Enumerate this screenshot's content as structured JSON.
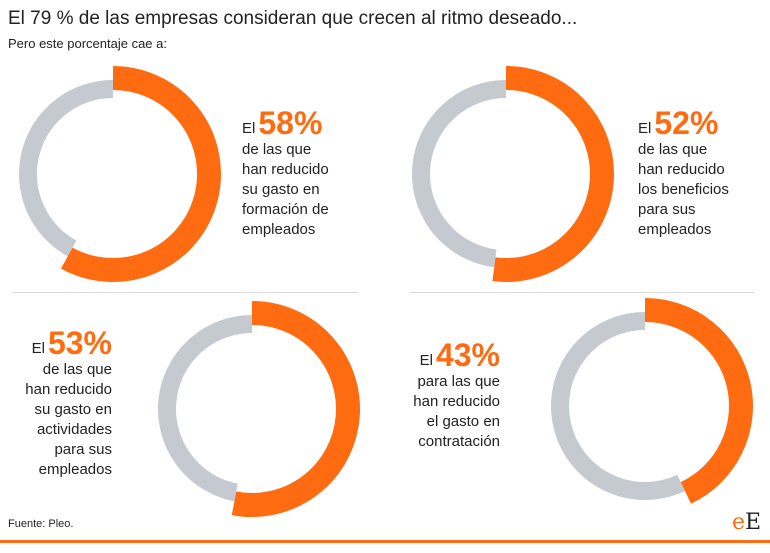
{
  "title": "El 79 % de las empresas consideran que crecen al ritmo deseado...",
  "subtitle": "Pero este porcentaje cae a:",
  "chart_data": [
    {
      "type": "pie",
      "value": 58,
      "label_prefix": "El",
      "label_value": "58%",
      "description": [
        "de las que",
        "han reducido",
        "su gasto en",
        "formación de",
        "empleados"
      ]
    },
    {
      "type": "pie",
      "value": 52,
      "label_prefix": "El",
      "label_value": "52%",
      "description": [
        "de las que",
        "han reducido",
        "los beneficios",
        "para sus",
        "empleados"
      ]
    },
    {
      "type": "pie",
      "value": 53,
      "label_prefix": "El",
      "label_value": "53%",
      "description": [
        "de las que",
        "han reducido",
        "su gasto en",
        "actividades",
        "para sus",
        "empleados"
      ]
    },
    {
      "type": "pie",
      "value": 43,
      "label_prefix": "El",
      "label_value": "43%",
      "description": [
        "para las que",
        "han reducido",
        "el gasto en",
        "contratación"
      ]
    }
  ],
  "colors": {
    "accent": "#FF6B10",
    "track": "#C5CAD1"
  },
  "source": "Fuente: Pleo.",
  "logo": {
    "first": "e",
    "second": "E"
  }
}
